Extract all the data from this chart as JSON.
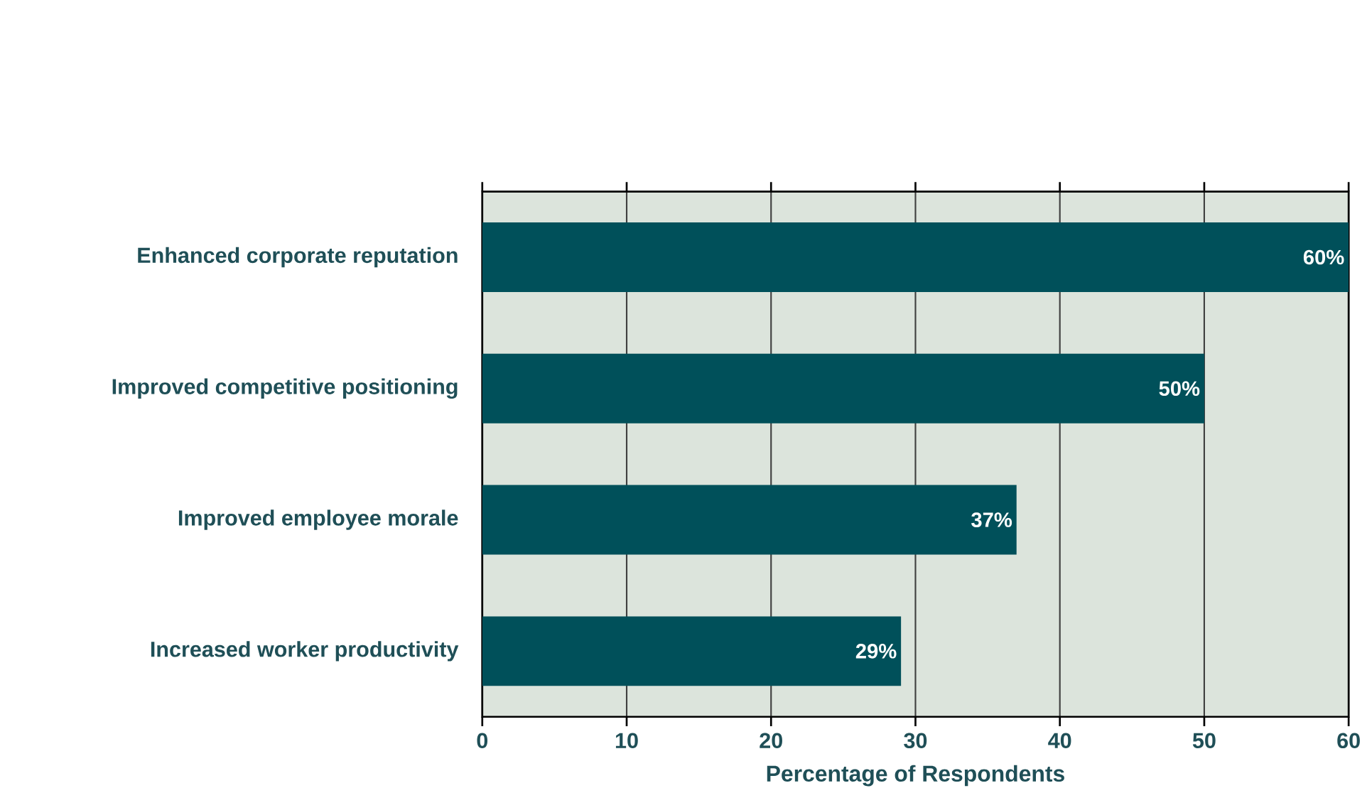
{
  "chart_data": {
    "type": "bar",
    "orientation": "horizontal",
    "xlabel": "Percentage of Respondents",
    "categories": [
      "Enhanced corporate reputation",
      "Improved competitive positioning",
      "Improved employee morale",
      "Increased worker productivity"
    ],
    "values": [
      60,
      50,
      37,
      29
    ],
    "value_labels": [
      "60%",
      "50%",
      "37%",
      "29%"
    ],
    "color": "#00505a",
    "xlim": [
      0,
      60
    ],
    "xticks": [
      0,
      10,
      20,
      30,
      40,
      50,
      60
    ],
    "grid": "x"
  }
}
